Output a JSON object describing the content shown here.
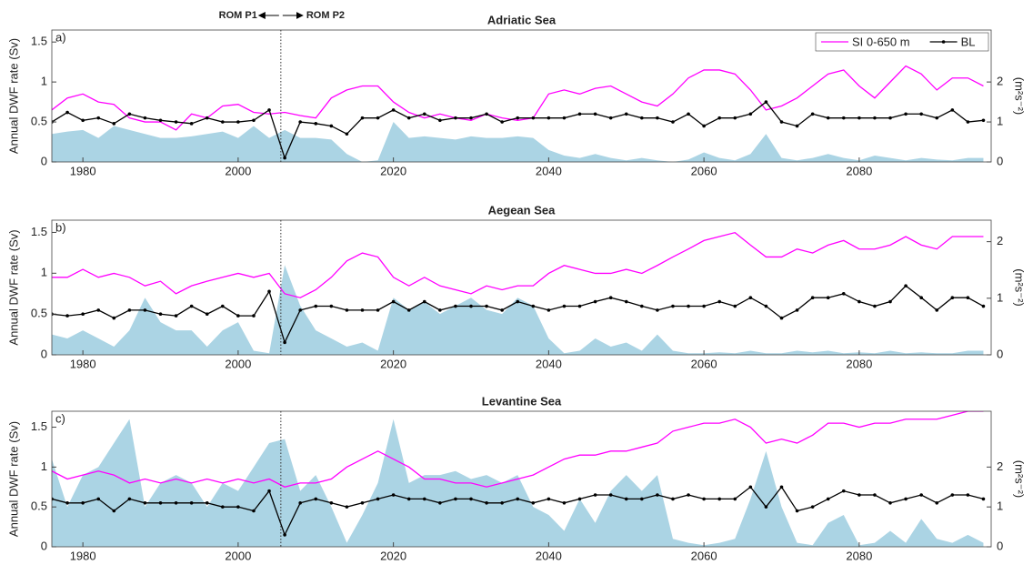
{
  "chart_data": [
    {
      "type": "line",
      "title": "Adriatic Sea",
      "panel_label": "a)",
      "ylabel": "Annual DWF rate (Sv)",
      "y2label": "(m²s⁻²)",
      "annotations": [
        "ROM P1",
        "ROM P2"
      ],
      "vline": 2005.5,
      "legend": "upper right",
      "xlim": [
        1976,
        2097
      ],
      "xticks": [
        1980,
        2000,
        2020,
        2040,
        2060,
        2080
      ],
      "ylim": [
        0,
        1.65
      ],
      "yticks": [
        0,
        0.5,
        1,
        1.5
      ],
      "y2lim": [
        0,
        3.3
      ],
      "y2ticks": [
        0,
        1,
        2
      ],
      "x": [
        1976,
        1978,
        1980,
        1982,
        1984,
        1986,
        1988,
        1990,
        1992,
        1994,
        1996,
        1998,
        2000,
        2002,
        2004,
        2006,
        2008,
        2010,
        2012,
        2014,
        2016,
        2018,
        2020,
        2022,
        2024,
        2026,
        2028,
        2030,
        2032,
        2034,
        2036,
        2038,
        2040,
        2042,
        2044,
        2046,
        2048,
        2050,
        2052,
        2054,
        2056,
        2058,
        2060,
        2062,
        2064,
        2066,
        2068,
        2070,
        2072,
        2074,
        2076,
        2078,
        2080,
        2082,
        2084,
        2086,
        2088,
        2090,
        2092,
        2094,
        2096
      ],
      "series": [
        {
          "kind": "area",
          "color": "#abd4e4",
          "values": [
            0.35,
            0.38,
            0.4,
            0.3,
            0.45,
            0.4,
            0.35,
            0.3,
            0.3,
            0.32,
            0.35,
            0.38,
            0.3,
            0.45,
            0.3,
            0.4,
            0.3,
            0.3,
            0.28,
            0.1,
            0,
            0.02,
            0.5,
            0.3,
            0.32,
            0.3,
            0.28,
            0.32,
            0.3,
            0.3,
            0.32,
            0.3,
            0.15,
            0.08,
            0.05,
            0.1,
            0.05,
            0.02,
            0.05,
            0.02,
            0,
            0.03,
            0.12,
            0.05,
            0.02,
            0.1,
            0.35,
            0.05,
            0.02,
            0.05,
            0.1,
            0.05,
            0.02,
            0.08,
            0.05,
            0.02,
            0.05,
            0.03,
            0.02,
            0.05,
            0.05
          ]
        },
        {
          "name": "SI 0-650 m",
          "kind": "line",
          "axis": "y2",
          "color": "#ff00ff",
          "values": [
            1.3,
            1.6,
            1.7,
            1.5,
            1.44,
            1.1,
            1,
            1,
            0.8,
            1.2,
            1.1,
            1.4,
            1.44,
            1.24,
            1.2,
            1.24,
            1.16,
            1.1,
            1.6,
            1.8,
            1.9,
            1.9,
            1.5,
            1.24,
            1.1,
            1.2,
            1.1,
            1.04,
            1.2,
            1.1,
            1.04,
            1.1,
            1.7,
            1.8,
            1.7,
            1.84,
            1.9,
            1.7,
            1.5,
            1.4,
            1.7,
            2.1,
            2.3,
            2.3,
            2.2,
            1.8,
            1.3,
            1.4,
            1.6,
            1.9,
            2.2,
            2.3,
            1.9,
            1.6,
            2,
            2.4,
            2.2,
            1.8,
            2.1,
            2.1,
            1.9
          ]
        },
        {
          "name": "BL",
          "kind": "line",
          "markers": true,
          "axis": "y2",
          "color": "#000000",
          "values": [
            1,
            1.24,
            1.04,
            1.1,
            0.96,
            1.2,
            1.1,
            1.04,
            1,
            0.96,
            1.1,
            1,
            1,
            1.04,
            1.3,
            0.1,
            1,
            0.96,
            0.9,
            0.7,
            1.1,
            1.1,
            1.3,
            1.1,
            1.2,
            1.04,
            1.1,
            1.1,
            1.2,
            1,
            1.1,
            1.1,
            1.1,
            1.1,
            1.2,
            1.2,
            1.1,
            1.2,
            1.1,
            1.1,
            1,
            1.2,
            0.9,
            1.1,
            1.1,
            1.2,
            1.5,
            1,
            0.9,
            1.2,
            1.1,
            1.1,
            1.1,
            1.1,
            1.1,
            1.2,
            1.2,
            1.1,
            1.3,
            1,
            1.04
          ]
        }
      ]
    },
    {
      "type": "line",
      "title": "Aegean Sea",
      "panel_label": "b)",
      "ylabel": "Annual DWF rate (Sv)",
      "y2label": "(m²s⁻²)",
      "vline": 2005.5,
      "xlim": [
        1976,
        2097
      ],
      "xticks": [
        1980,
        2000,
        2020,
        2040,
        2060,
        2080
      ],
      "ylim": [
        0,
        1.65
      ],
      "yticks": [
        0,
        0.5,
        1,
        1.5
      ],
      "y2lim": [
        0,
        2.38
      ],
      "y2ticks": [
        0,
        1,
        2
      ],
      "x": [
        1976,
        1978,
        1980,
        1982,
        1984,
        1986,
        1988,
        1990,
        1992,
        1994,
        1996,
        1998,
        2000,
        2002,
        2004,
        2006,
        2008,
        2010,
        2012,
        2014,
        2016,
        2018,
        2020,
        2022,
        2024,
        2026,
        2028,
        2030,
        2032,
        2034,
        2036,
        2038,
        2040,
        2042,
        2044,
        2046,
        2048,
        2050,
        2052,
        2054,
        2056,
        2058,
        2060,
        2062,
        2064,
        2066,
        2068,
        2070,
        2072,
        2074,
        2076,
        2078,
        2080,
        2082,
        2084,
        2086,
        2088,
        2090,
        2092,
        2094,
        2096
      ],
      "series": [
        {
          "kind": "area",
          "color": "#abd4e4",
          "values": [
            0.25,
            0.2,
            0.3,
            0.2,
            0.1,
            0.3,
            0.7,
            0.4,
            0.3,
            0.3,
            0.1,
            0.3,
            0.4,
            0.05,
            0.02,
            1.1,
            0.6,
            0.3,
            0.2,
            0.1,
            0.15,
            0.05,
            0.7,
            0.55,
            0.65,
            0.5,
            0.6,
            0.7,
            0.55,
            0.5,
            0.7,
            0.6,
            0.2,
            0.02,
            0.05,
            0.2,
            0.1,
            0.15,
            0.05,
            0.25,
            0.05,
            0.02,
            0.02,
            0.03,
            0.02,
            0.05,
            0.02,
            0.02,
            0.05,
            0.03,
            0.05,
            0.02,
            0.03,
            0.02,
            0.05,
            0.02,
            0.03,
            0.02,
            0.02,
            0.05,
            0.05
          ]
        },
        {
          "name": "SI 0-650 m",
          "kind": "line",
          "axis": "y2",
          "color": "#ff00ff",
          "values": [
            1.37,
            1.37,
            1.51,
            1.37,
            1.44,
            1.37,
            1.22,
            1.3,
            1.08,
            1.22,
            1.3,
            1.37,
            1.44,
            1.37,
            1.44,
            1.08,
            1.01,
            1.15,
            1.37,
            1.66,
            1.8,
            1.73,
            1.37,
            1.22,
            1.37,
            1.22,
            1.15,
            1.08,
            1.22,
            1.15,
            1.22,
            1.22,
            1.44,
            1.58,
            1.51,
            1.44,
            1.44,
            1.51,
            1.44,
            1.58,
            1.73,
            1.87,
            2.02,
            2.09,
            2.16,
            1.94,
            1.73,
            1.73,
            1.87,
            1.8,
            1.94,
            2.02,
            1.87,
            1.87,
            1.94,
            2.09,
            1.94,
            1.87,
            2.09,
            2.09,
            2.09
          ]
        },
        {
          "name": "BL",
          "kind": "line",
          "markers": true,
          "axis": "y2",
          "color": "#000000",
          "values": [
            0.72,
            0.69,
            0.72,
            0.79,
            0.65,
            0.79,
            0.79,
            0.72,
            0.69,
            0.86,
            0.72,
            0.86,
            0.69,
            0.69,
            1.12,
            0.22,
            0.79,
            0.86,
            0.86,
            0.79,
            0.79,
            0.79,
            0.94,
            0.79,
            0.94,
            0.79,
            0.86,
            0.86,
            0.86,
            0.79,
            0.94,
            0.86,
            0.79,
            0.86,
            0.86,
            0.94,
            1.01,
            0.94,
            0.86,
            0.79,
            0.86,
            0.86,
            0.86,
            0.94,
            0.86,
            1.01,
            0.86,
            0.65,
            0.79,
            1.01,
            1.01,
            1.08,
            0.94,
            0.86,
            0.94,
            1.22,
            1.01,
            0.79,
            1.01,
            1.01,
            0.86
          ]
        }
      ]
    },
    {
      "type": "line",
      "title": "Levantine Sea",
      "panel_label": "c)",
      "ylabel": "Annual DWF rate (Sv)",
      "y2label": "(m²s⁻²)",
      "vline": 2005.5,
      "xlim": [
        1976,
        2097
      ],
      "xticks": [
        1980,
        2000,
        2020,
        2040,
        2060,
        2080
      ],
      "ylim": [
        0,
        1.7
      ],
      "yticks": [
        0,
        0.5,
        1,
        1.5
      ],
      "y2lim": [
        0,
        3.4
      ],
      "y2ticks": [
        0,
        1,
        2
      ],
      "x": [
        1976,
        1978,
        1980,
        1982,
        1984,
        1986,
        1988,
        1990,
        1992,
        1994,
        1996,
        1998,
        2000,
        2002,
        2004,
        2006,
        2008,
        2010,
        2012,
        2014,
        2016,
        2018,
        2020,
        2022,
        2024,
        2026,
        2028,
        2030,
        2032,
        2034,
        2036,
        2038,
        2040,
        2042,
        2044,
        2046,
        2048,
        2050,
        2052,
        2054,
        2056,
        2058,
        2060,
        2062,
        2064,
        2066,
        2068,
        2070,
        2072,
        2074,
        2076,
        2078,
        2080,
        2082,
        2084,
        2086,
        2088,
        2090,
        2092,
        2094,
        2096
      ],
      "series": [
        {
          "kind": "area",
          "color": "#abd4e4",
          "values": [
            1.1,
            0.5,
            0.9,
            1,
            1.3,
            1.6,
            0.5,
            0.8,
            0.9,
            0.8,
            0.5,
            0.8,
            0.7,
            1,
            1.3,
            1.35,
            0.7,
            0.9,
            0.5,
            0.05,
            0.4,
            0.8,
            1.6,
            0.8,
            0.9,
            0.9,
            0.95,
            0.85,
            0.9,
            0.8,
            0.9,
            0.5,
            0.4,
            0.2,
            0.6,
            0.3,
            0.7,
            0.9,
            0.7,
            0.9,
            0.1,
            0.05,
            0.02,
            0.05,
            0.1,
            0.6,
            1.2,
            0.5,
            0.05,
            0.02,
            0.3,
            0.4,
            0.02,
            0.05,
            0.2,
            0.05,
            0.35,
            0.1,
            0.05,
            0.15,
            0.05
          ]
        },
        {
          "name": "SI 0-650 m",
          "kind": "line",
          "axis": "y2",
          "color": "#ff00ff",
          "values": [
            1.9,
            1.7,
            1.8,
            1.9,
            1.8,
            1.6,
            1.7,
            1.6,
            1.7,
            1.6,
            1.7,
            1.6,
            1.7,
            1.6,
            1.7,
            1.5,
            1.6,
            1.6,
            1.7,
            2,
            2.2,
            2.4,
            2.2,
            2,
            1.7,
            1.7,
            1.6,
            1.6,
            1.5,
            1.6,
            1.7,
            1.8,
            2,
            2.2,
            2.3,
            2.3,
            2.4,
            2.4,
            2.5,
            2.6,
            2.9,
            3,
            3.1,
            3.1,
            3.2,
            3,
            2.6,
            2.7,
            2.6,
            2.8,
            3.1,
            3.1,
            3,
            3.1,
            3.1,
            3.2,
            3.2,
            3.2,
            3.3,
            3.4,
            3.4
          ]
        },
        {
          "name": "BL",
          "kind": "line",
          "markers": true,
          "axis": "y2",
          "color": "#000000",
          "values": [
            1.2,
            1.1,
            1.1,
            1.2,
            0.9,
            1.2,
            1.1,
            1.1,
            1.1,
            1.1,
            1.1,
            1,
            1,
            0.9,
            1.4,
            0.3,
            1.1,
            1.2,
            1.1,
            1,
            1.1,
            1.2,
            1.3,
            1.2,
            1.2,
            1.1,
            1.2,
            1.2,
            1.1,
            1.1,
            1.2,
            1.1,
            1.2,
            1.1,
            1.2,
            1.3,
            1.3,
            1.2,
            1.2,
            1.3,
            1.2,
            1.3,
            1.2,
            1.2,
            1.2,
            1.5,
            1,
            1.5,
            0.9,
            1,
            1.2,
            1.4,
            1.3,
            1.3,
            1.1,
            1.2,
            1.3,
            1.1,
            1.3,
            1.3,
            1.2
          ]
        }
      ]
    }
  ]
}
